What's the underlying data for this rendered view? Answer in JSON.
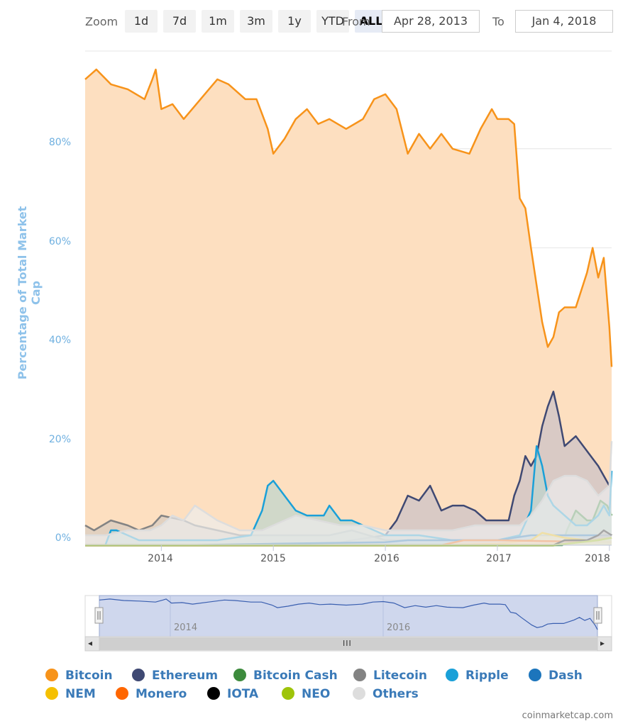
{
  "zoom": {
    "label": "Zoom",
    "buttons": [
      "1d",
      "7d",
      "1m",
      "3m",
      "1y",
      "YTD",
      "ALL"
    ],
    "active": "ALL"
  },
  "range": {
    "from_label": "From",
    "from_value": "Apr 28, 2013",
    "to_label": "To",
    "to_value": "Jan 4, 2018"
  },
  "credits": "coinmarketcap.com",
  "navigator": {
    "year_labels": [
      "2014",
      "2016"
    ],
    "scrollbar_grip": "III",
    "left_arrow": "◂",
    "right_arrow": "▸"
  },
  "chart_data": {
    "type": "area",
    "title": "",
    "ylabel": "Percentage of Total Market Cap",
    "ylim": [
      0,
      100
    ],
    "y_ticks": [
      "0%",
      "20%",
      "40%",
      "60%",
      "80%"
    ],
    "y_tick_values": [
      0,
      20,
      40,
      60,
      80
    ],
    "x_ticks": [
      "2014",
      "2015",
      "2016",
      "2017",
      "2018"
    ],
    "x_tick_values": [
      2014.0,
      2015.0,
      2016.0,
      2017.0,
      2018.0
    ],
    "xlim": [
      2013.32,
      2018.02
    ],
    "grid": true,
    "legend_position": "bottom",
    "series": [
      {
        "name": "Bitcoin",
        "color": "#f7931a",
        "fill": "#fddfc0",
        "x": [
          2013.32,
          2013.42,
          2013.55,
          2013.7,
          2013.85,
          2013.92,
          2013.95,
          2014.0,
          2014.1,
          2014.2,
          2014.35,
          2014.5,
          2014.6,
          2014.75,
          2014.85,
          2014.95,
          2015.0,
          2015.1,
          2015.2,
          2015.3,
          2015.4,
          2015.5,
          2015.65,
          2015.8,
          2015.9,
          2016.0,
          2016.1,
          2016.2,
          2016.3,
          2016.4,
          2016.5,
          2016.6,
          2016.75,
          2016.85,
          2016.95,
          2017.0,
          2017.1,
          2017.15,
          2017.2,
          2017.25,
          2017.3,
          2017.4,
          2017.45,
          2017.5,
          2017.55,
          2017.6,
          2017.7,
          2017.8,
          2017.85,
          2017.9,
          2017.95,
          2018.0,
          2018.02
        ],
        "values": [
          94,
          96,
          93,
          92,
          90,
          94,
          96,
          88,
          89,
          86,
          90,
          94,
          93,
          90,
          90,
          84,
          79,
          82,
          86,
          88,
          85,
          86,
          84,
          86,
          90,
          91,
          88,
          79,
          83,
          80,
          83,
          80,
          79,
          84,
          88,
          86,
          86,
          85,
          70,
          68,
          60,
          45,
          40,
          42,
          47,
          48,
          48,
          55,
          60,
          54,
          58,
          44,
          36
        ]
      },
      {
        "name": "Ethereum",
        "color": "#3f4973",
        "fill": "#c9c1c8",
        "x": [
          2013.32,
          2015.5,
          2015.7,
          2016.0,
          2016.1,
          2016.2,
          2016.3,
          2016.4,
          2016.5,
          2016.6,
          2016.7,
          2016.8,
          2016.9,
          2017.0,
          2017.1,
          2017.15,
          2017.2,
          2017.25,
          2017.3,
          2017.35,
          2017.4,
          2017.45,
          2017.5,
          2017.55,
          2017.6,
          2017.7,
          2017.8,
          2017.9,
          2018.0,
          2018.02
        ],
        "values": [
          0,
          0,
          1,
          2,
          5,
          10,
          9,
          12,
          7,
          8,
          8,
          7,
          5,
          5,
          5,
          10,
          13,
          18,
          16,
          18,
          24,
          28,
          31,
          26,
          20,
          22,
          19,
          16,
          12,
          12
        ]
      },
      {
        "name": "Bitcoin Cash",
        "color": "#3d8b3d",
        "fill": "#9fc49a",
        "x": [
          2013.32,
          2017.58,
          2017.62,
          2017.7,
          2017.8,
          2017.85,
          2017.92,
          2017.98,
          2018.02
        ],
        "values": [
          0,
          0,
          3,
          7,
          5,
          5,
          9,
          8,
          6
        ]
      },
      {
        "name": "Litecoin",
        "color": "#838383",
        "fill": "#d5cac0",
        "x": [
          2013.32,
          2013.4,
          2013.55,
          2013.7,
          2013.8,
          2013.92,
          2014.0,
          2014.2,
          2014.3,
          2014.5,
          2014.7,
          2014.9,
          2015.1,
          2015.3,
          2015.5,
          2015.7,
          2016.0,
          2016.5,
          2017.0,
          2017.3,
          2017.5,
          2017.7,
          2017.9,
          2018.02
        ],
        "values": [
          4,
          3,
          5,
          4,
          3,
          4,
          6,
          5,
          4,
          3,
          2,
          2,
          2,
          2,
          2,
          3,
          1,
          1,
          1,
          1,
          2,
          2,
          1,
          1
        ]
      },
      {
        "name": "Ripple",
        "color": "#1aa0d8",
        "fill": "#bcd4cd",
        "x": [
          2013.32,
          2013.5,
          2013.55,
          2013.6,
          2013.7,
          2013.8,
          2014.0,
          2014.2,
          2014.5,
          2014.8,
          2014.9,
          2014.95,
          2015.0,
          2015.1,
          2015.2,
          2015.3,
          2015.45,
          2015.5,
          2015.6,
          2015.7,
          2016.0,
          2016.3,
          2016.6,
          2016.9,
          2017.0,
          2017.2,
          2017.3,
          2017.35,
          2017.4,
          2017.45,
          2017.5,
          2017.6,
          2017.7,
          2017.8,
          2017.9,
          2017.95,
          2018.0,
          2018.02
        ],
        "values": [
          0,
          0,
          3,
          3,
          2,
          1,
          1,
          1,
          1,
          2,
          7,
          12,
          13,
          10,
          7,
          6,
          6,
          8,
          5,
          5,
          2,
          2,
          1,
          1,
          1,
          2,
          7,
          20,
          16,
          10,
          8,
          6,
          4,
          4,
          6,
          8,
          6,
          15
        ]
      },
      {
        "name": "Dash",
        "color": "#1c75bc",
        "fill": "#a8c4dc",
        "x": [
          2013.32,
          2014.2,
          2015.0,
          2016.0,
          2016.2,
          2017.0,
          2017.3,
          2017.6,
          2018.02
        ],
        "values": [
          0,
          0,
          0.3,
          0.6,
          1,
          1,
          2,
          2,
          2
        ]
      },
      {
        "name": "NEM",
        "color": "#f5c000",
        "fill": "#f6e2a0",
        "x": [
          2013.32,
          2016.5,
          2017.0,
          2017.3,
          2017.4,
          2017.6,
          2017.8,
          2018.02
        ],
        "values": [
          0,
          0,
          0.3,
          1,
          2.5,
          1.5,
          1,
          1.5
        ]
      },
      {
        "name": "Monero",
        "color": "#ff6600",
        "fill": "#fbc6a0",
        "x": [
          2013.32,
          2016.5,
          2016.7,
          2017.0,
          2017.5,
          2018.02
        ],
        "values": [
          0,
          0,
          1,
          1,
          0.8,
          0.6
        ]
      },
      {
        "name": "IOTA",
        "color": "#000000",
        "fill": "#b0a79f",
        "x": [
          2013.32,
          2017.5,
          2017.6,
          2017.8,
          2017.9,
          2017.95,
          2018.02
        ],
        "values": [
          0,
          0,
          1,
          1,
          2,
          3,
          2
        ]
      },
      {
        "name": "NEO",
        "color": "#9ec40a",
        "fill": "#dbe6a8",
        "x": [
          2013.32,
          2017.5,
          2017.7,
          2017.9,
          2018.02
        ],
        "values": [
          0,
          0,
          0.5,
          1,
          1.5
        ]
      },
      {
        "name": "Others",
        "color": "#dddddd",
        "fill": "#ececec",
        "x": [
          2013.32,
          2013.5,
          2013.7,
          2013.9,
          2014.0,
          2014.1,
          2014.2,
          2014.3,
          2014.5,
          2014.7,
          2014.9,
          2015.0,
          2015.2,
          2015.4,
          2015.6,
          2015.8,
          2016.0,
          2016.2,
          2016.4,
          2016.6,
          2016.8,
          2017.0,
          2017.2,
          2017.3,
          2017.4,
          2017.5,
          2017.6,
          2017.7,
          2017.8,
          2017.9,
          2018.0,
          2018.02
        ],
        "values": [
          2,
          2,
          3,
          3,
          4,
          6,
          5,
          8,
          5,
          3,
          3,
          4,
          6,
          5,
          4,
          4,
          3,
          3,
          3,
          3,
          4,
          4,
          4,
          6,
          9,
          13,
          14,
          14,
          13,
          10,
          12,
          21
        ]
      }
    ]
  }
}
